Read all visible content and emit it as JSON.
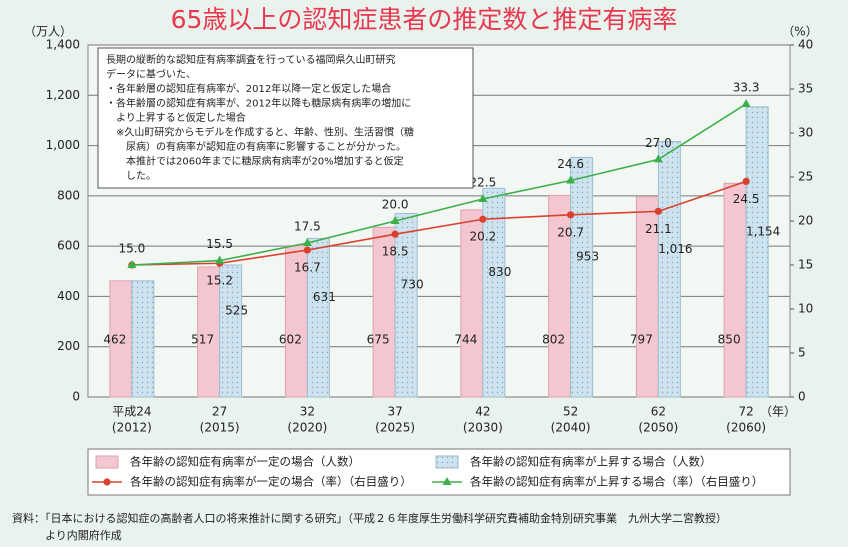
{
  "chart_data": {
    "type": "bar",
    "title": "65歳以上の認知症患者の推定数と推定有病率",
    "y_unit": "（万人）",
    "y2_unit": "（%）",
    "x_unit": "（年）",
    "categories": [
      "平成24",
      "27",
      "32",
      "37",
      "42",
      "52",
      "62",
      "72"
    ],
    "category_years": [
      "(2012)",
      "(2015)",
      "(2020)",
      "(2025)",
      "(2030)",
      "(2040)",
      "(2050)",
      "(2060)"
    ],
    "ylim": [
      0,
      1400
    ],
    "yticks": [
      0,
      200,
      400,
      600,
      800,
      {
        "value": 1000,
        "label": "1,000"
      },
      {
        "value": 1200,
        "label": "1,200"
      },
      {
        "value": 1400,
        "label": "1,400"
      }
    ],
    "y2lim": [
      0,
      40
    ],
    "y2ticks": [
      0,
      5,
      10,
      15,
      20,
      25,
      30,
      35,
      40
    ],
    "grid": true,
    "series": [
      {
        "name": "各年齢の認知症有病率が一定の場合（人数）",
        "type": "bar",
        "color": "#f4c7d0",
        "values": [
          462,
          517,
          602,
          675,
          744,
          802,
          797,
          850
        ]
      },
      {
        "name": "各年齢の認知症有病率が上昇する場合（人数）",
        "type": "bar",
        "color": "#cfe3ee",
        "values": [
          462,
          525,
          631,
          730,
          830,
          953,
          1016,
          1154
        ],
        "value_labels": [
          null,
          "525",
          "631",
          "730",
          "830",
          "953",
          "1,016",
          "1,154"
        ]
      },
      {
        "name": "各年齢の認知症有病率が一定の場合（率）（右目盛り）",
        "type": "line",
        "axis": "y2",
        "color": "#d9412e",
        "values": [
          15.0,
          15.2,
          16.7,
          18.5,
          20.2,
          20.7,
          21.1,
          24.5
        ],
        "value_labels": [
          null,
          "15.2",
          "16.7",
          "18.5",
          "20.2",
          "20.7",
          "21.1",
          "24.5"
        ]
      },
      {
        "name": "各年齢の認知症有病率が上昇する場合（率）（右目盛り）",
        "type": "line",
        "axis": "y2",
        "color": "#3bb04a",
        "values": [
          15.0,
          15.5,
          17.5,
          20.0,
          22.5,
          24.6,
          27.0,
          33.3
        ],
        "value_labels": [
          "15.0",
          "15.5",
          "17.5",
          "20.0",
          "22.5",
          "24.6",
          "27.0",
          "33.3"
        ]
      }
    ],
    "note": [
      "長期の縦断的な認知症有病率調査を行っている福岡県久山町研究",
      "データに基づいた、",
      "・各年齢層の認知症有病率が、2012年以降一定と仮定した場合",
      "・各年齢層の認知症有病率が、2012年以降も糖尿病有病率の増加に",
      "　より上昇すると仮定した場合",
      "　※久山町研究からモデルを作成すると、年齢、性別、生活習慣（糖",
      "　　尿病）の有病率が認知症の有病率に影響することが分かった。",
      "　　本推計では2060年までに糖尿病有病率が20%増加すると仮定",
      "　　した。"
    ],
    "source": [
      "資料：「日本における認知症の高齢者人口の将来推計に関する研究」（平成２６年度厚生労働科学研究費補助金特別研究事業　九州大学二宮教授）",
      "　　　より内閣府作成"
    ]
  }
}
